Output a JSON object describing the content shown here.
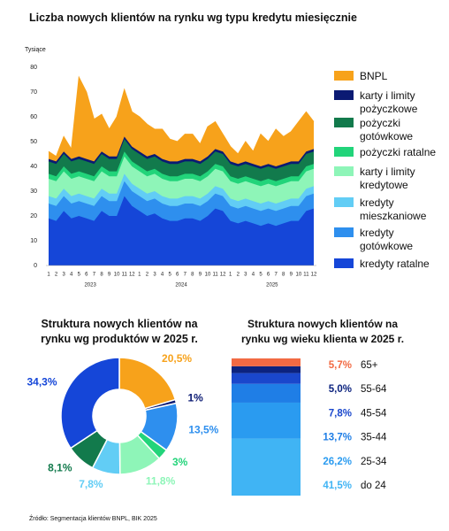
{
  "title": "Liczba nowych klientów na rynku wg typu kredytu miesięcznie",
  "source": "Źródło: Segmentacja klientów BNPL, BIK 2025",
  "chart_data": [
    {
      "type": "area",
      "stacked": true,
      "y_label": "Tysiące",
      "categories": [
        "1",
        "2",
        "3",
        "4",
        "5",
        "6",
        "7",
        "8",
        "9",
        "10",
        "11",
        "12",
        "1",
        "2",
        "3",
        "4",
        "5",
        "6",
        "7",
        "8",
        "9",
        "10",
        "11",
        "12",
        "1",
        "2",
        "3",
        "4",
        "5",
        "6",
        "7",
        "8",
        "9",
        "10",
        "11",
        "12"
      ],
      "year_labels": [
        "2023",
        "2024",
        "2025"
      ],
      "ylim": [
        0,
        80
      ],
      "yticks": [
        0,
        10,
        20,
        30,
        40,
        50,
        60,
        70,
        80
      ],
      "grid": false,
      "series": [
        {
          "name": "kredyty ratalne",
          "color": "#1546d8",
          "values": [
            19,
            18,
            22,
            19,
            20,
            19,
            18,
            22,
            20,
            20,
            28,
            24,
            22,
            20,
            21,
            19,
            18,
            18,
            19,
            19,
            18,
            20,
            23,
            22,
            18,
            17,
            18,
            17,
            16,
            17,
            16,
            17,
            18,
            18,
            22,
            23
          ]
        },
        {
          "name": "kredyty gotówkowe",
          "color": "#2e8fee",
          "values": [
            6,
            6,
            6,
            6,
            6,
            6,
            6,
            6,
            6,
            6,
            6,
            6,
            6,
            6,
            6,
            6,
            6,
            6,
            6,
            6,
            6,
            6,
            6,
            6,
            6,
            6,
            6,
            6,
            6,
            6,
            6,
            6,
            6,
            6,
            6,
            6
          ]
        },
        {
          "name": "kredyty mieszkaniowe",
          "color": "#62cdf5",
          "values": [
            3,
            3,
            3,
            3,
            3,
            3,
            3,
            3,
            3,
            3,
            3,
            3,
            3,
            3,
            3,
            3,
            3,
            3,
            3,
            3,
            3,
            3,
            3,
            3,
            3,
            3,
            3,
            3,
            3,
            3,
            3,
            3,
            3,
            3,
            3,
            3
          ]
        },
        {
          "name": "karty i limity kredytowe",
          "color": "#8ef5b8",
          "values": [
            7,
            7,
            7,
            7,
            7,
            7,
            7,
            7,
            7,
            7,
            7,
            7,
            7,
            7,
            7,
            7,
            7,
            7,
            7,
            7,
            7,
            7,
            7,
            7,
            7,
            7,
            7,
            7,
            7,
            7,
            7,
            7,
            7,
            7,
            7,
            7
          ]
        },
        {
          "name": "pożyczki ratalne",
          "color": "#22d47a",
          "values": [
            2,
            2,
            2,
            2,
            2,
            2,
            2,
            2,
            2,
            2,
            2,
            2,
            2,
            2,
            2,
            2,
            2,
            2,
            2,
            2,
            2,
            2,
            2,
            2,
            2,
            2,
            2,
            2,
            2,
            2,
            2,
            2,
            2,
            2,
            2,
            2
          ]
        },
        {
          "name": "pożyczki gotówkowe",
          "color": "#127a4c",
          "values": [
            5,
            5,
            5,
            5,
            5,
            5,
            5,
            5,
            5,
            5,
            5,
            5,
            5,
            5,
            5,
            5,
            5,
            5,
            5,
            5,
            5,
            5,
            5,
            5,
            5,
            5,
            5,
            5,
            5,
            5,
            5,
            5,
            5,
            5,
            5,
            5
          ]
        },
        {
          "name": "karty i limity pożyczkowe",
          "color": "#0b1a73",
          "values": [
            1,
            1,
            1,
            1,
            1,
            1,
            1,
            1,
            1,
            1,
            1,
            1,
            1,
            1,
            1,
            1,
            1,
            1,
            1,
            1,
            1,
            1,
            1,
            1,
            1,
            1,
            1,
            1,
            1,
            1,
            1,
            1,
            1,
            1,
            1,
            1
          ]
        },
        {
          "name": "BNPL",
          "color": "#f7a21b",
          "values": [
            3,
            2,
            6,
            4,
            32,
            27,
            17,
            15,
            11,
            16,
            19,
            14,
            14,
            13,
            10,
            12,
            9,
            8,
            10,
            10,
            7,
            12,
            11,
            7,
            6,
            4,
            8,
            5,
            13,
            9,
            15,
            11,
            12,
            16,
            16,
            11
          ]
        }
      ]
    },
    {
      "type": "donut",
      "title": "Struktura nowych klientów na rynku wg produktów w 2025 r.",
      "values": [
        20.5,
        1,
        13.5,
        3,
        11.8,
        7.8,
        8.1,
        34.3
      ],
      "value_labels": [
        "20,5%",
        "1%",
        "13,5%",
        "3%",
        "11,8%",
        "7,8%",
        "8,1%",
        "34,3%"
      ],
      "colors": [
        "#f7a21b",
        "#0b1a73",
        "#2e8fee",
        "#22d47a",
        "#8ef5b8",
        "#62cdf5",
        "#127a4c",
        "#1546d8"
      ]
    },
    {
      "type": "stacked-bar",
      "title": "Struktura nowych klientów na rynku wg wieku klienta w 2025 r.",
      "categories": [
        "65+",
        "55-64",
        "45-54",
        "35-44",
        "25-34",
        "do 24"
      ],
      "values": [
        5.7,
        5.0,
        7.8,
        13.7,
        26.2,
        41.5
      ],
      "value_labels": [
        "5,7%",
        "5,0%",
        "7,8%",
        "13,7%",
        "26,2%",
        "41,5%"
      ],
      "colors": [
        "#f26a43",
        "#0c237f",
        "#1a47cc",
        "#1f7ee6",
        "#2a9bf0",
        "#40b4f4"
      ]
    }
  ]
}
